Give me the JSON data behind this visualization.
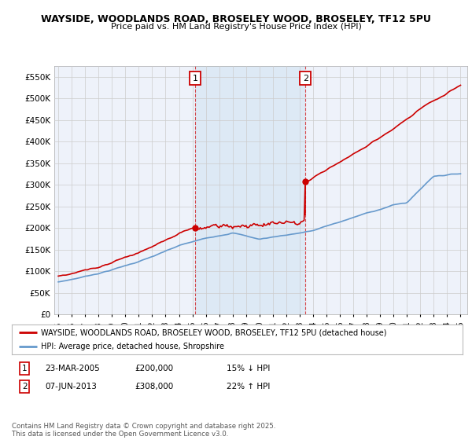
{
  "title1": "WAYSIDE, WOODLANDS ROAD, BROSELEY WOOD, BROSELEY, TF12 5PU",
  "title2": "Price paid vs. HM Land Registry's House Price Index (HPI)",
  "ylim": [
    0,
    575000
  ],
  "yticks": [
    0,
    50000,
    100000,
    150000,
    200000,
    250000,
    300000,
    350000,
    400000,
    450000,
    500000,
    550000
  ],
  "ytick_labels": [
    "£0",
    "£50K",
    "£100K",
    "£150K",
    "£200K",
    "£250K",
    "£300K",
    "£350K",
    "£400K",
    "£450K",
    "£500K",
    "£550K"
  ],
  "xlim_start": 1994.7,
  "xlim_end": 2025.5,
  "marker1_x": 2005.2,
  "marker2_x": 2013.43,
  "marker1_label": "1",
  "marker2_label": "2",
  "sale1_price": 200000,
  "sale2_price": 308000,
  "transaction1": {
    "num": "1",
    "date": "23-MAR-2005",
    "price": "£200,000",
    "hpi": "15% ↓ HPI"
  },
  "transaction2": {
    "num": "2",
    "date": "07-JUN-2013",
    "price": "£308,000",
    "hpi": "22% ↑ HPI"
  },
  "legend_label_red": "WAYSIDE, WOODLANDS ROAD, BROSELEY WOOD, BROSELEY, TF12 5PU (detached house)",
  "legend_label_blue": "HPI: Average price, detached house, Shropshire",
  "footer": "Contains HM Land Registry data © Crown copyright and database right 2025.\nThis data is licensed under the Open Government Licence v3.0.",
  "red_color": "#cc0000",
  "blue_color": "#6699cc",
  "shade_color": "#dce8f5",
  "background_color": "#ffffff",
  "plot_bg_color": "#eef2fa",
  "grid_color": "#cccccc"
}
